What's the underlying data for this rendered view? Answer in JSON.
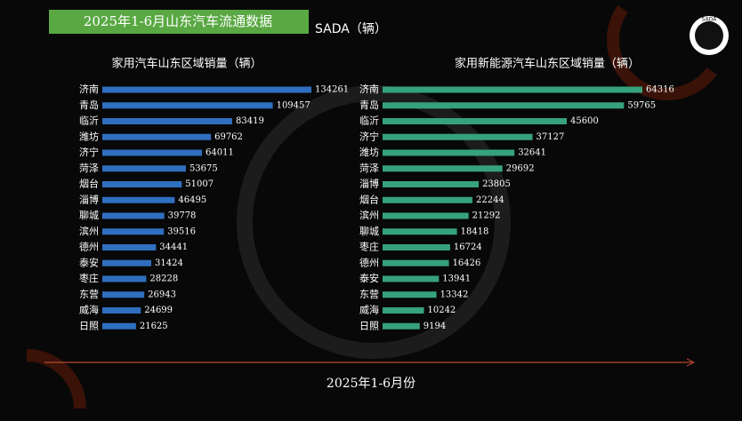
{
  "header": {
    "title": "2025年1-6月山东汽车流通数据",
    "unit": "SADA（辆）",
    "logo": "SADA"
  },
  "x_label": "2025年1-6月份",
  "chart_data": [
    {
      "type": "bar",
      "orientation": "horizontal",
      "title": "家用汽车山东区域销量（辆）",
      "color": "#2f6fc0",
      "categories": [
        "济南",
        "青岛",
        "临沂",
        "潍坊",
        "济宁",
        "菏泽",
        "烟台",
        "淄博",
        "聊城",
        "滨州",
        "德州",
        "泰安",
        "枣庄",
        "东营",
        "威海",
        "日照"
      ],
      "values": [
        134261,
        109457,
        83419,
        69762,
        64011,
        53675,
        51007,
        46495,
        39778,
        39516,
        34441,
        31424,
        28228,
        26943,
        24699,
        21625
      ]
    },
    {
      "type": "bar",
      "orientation": "horizontal",
      "title": "家用新能源汽车山东区域销量（辆）",
      "color": "#36a27c",
      "categories": [
        "济南",
        "青岛",
        "临沂",
        "济宁",
        "潍坊",
        "菏泽",
        "淄博",
        "烟台",
        "滨州",
        "聊城",
        "枣庄",
        "德州",
        "泰安",
        "东营",
        "威海",
        "日照"
      ],
      "values": [
        64316,
        59765,
        45600,
        37127,
        32641,
        29692,
        23805,
        22244,
        21292,
        18418,
        16724,
        16426,
        13941,
        13342,
        10242,
        9194
      ]
    }
  ]
}
